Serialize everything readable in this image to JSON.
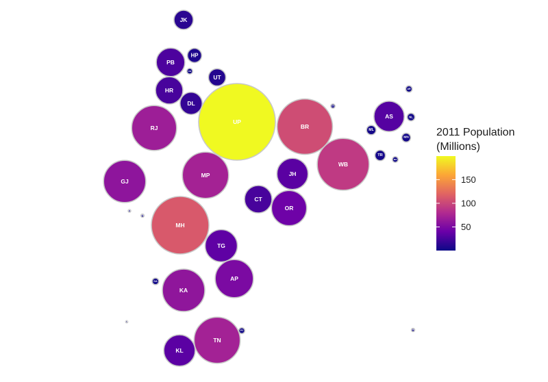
{
  "chart_data": {
    "type": "bubble-map",
    "legend": {
      "title_line1": "2011 Population",
      "title_line2": "(Millions)",
      "ticks": [
        50,
        100,
        150
      ],
      "range": [
        0.06,
        199.8
      ],
      "placement": "right",
      "colormap": [
        "#0d0887",
        "#6a00a8",
        "#b12a90",
        "#e16462",
        "#fca636",
        "#f0f921"
      ]
    },
    "states": [
      {
        "label": "JK",
        "value": 12.5
      },
      {
        "label": "HP",
        "value": 6.9
      },
      {
        "label": "PB",
        "value": 27.7
      },
      {
        "label": "CH",
        "value": 1.1
      },
      {
        "label": "UT",
        "value": 10.1
      },
      {
        "label": "HR",
        "value": 25.4
      },
      {
        "label": "DL",
        "value": 16.8
      },
      {
        "label": "UP",
        "value": 199.8
      },
      {
        "label": "BR",
        "value": 104.1
      },
      {
        "label": "SK",
        "value": 0.6
      },
      {
        "label": "AR",
        "value": 1.4
      },
      {
        "label": "AS",
        "value": 31.2
      },
      {
        "label": "NL",
        "value": 2.0
      },
      {
        "label": "ML",
        "value": 3.0
      },
      {
        "label": "MN",
        "value": 2.6
      },
      {
        "label": "TR",
        "value": 3.7
      },
      {
        "label": "MZ",
        "value": 1.1
      },
      {
        "label": "RJ",
        "value": 68.5
      },
      {
        "label": "WB",
        "value": 91.3
      },
      {
        "label": "GJ",
        "value": 60.4
      },
      {
        "label": "MP",
        "value": 72.6
      },
      {
        "label": "JH",
        "value": 33.0
      },
      {
        "label": "CT",
        "value": 25.5
      },
      {
        "label": "OR",
        "value": 42.0
      },
      {
        "label": "DD",
        "value": 0.24
      },
      {
        "label": "DN",
        "value": 0.34
      },
      {
        "label": "MH",
        "value": 112.4
      },
      {
        "label": "TG",
        "value": 35.2
      },
      {
        "label": "GA",
        "value": 1.5
      },
      {
        "label": "AP",
        "value": 49.4
      },
      {
        "label": "KA",
        "value": 61.1
      },
      {
        "label": "LD",
        "value": 0.06
      },
      {
        "label": "PY",
        "value": 1.2
      },
      {
        "label": "AN",
        "value": 0.38
      },
      {
        "label": "TN",
        "value": 72.1
      },
      {
        "label": "KL",
        "value": 33.4
      }
    ]
  }
}
